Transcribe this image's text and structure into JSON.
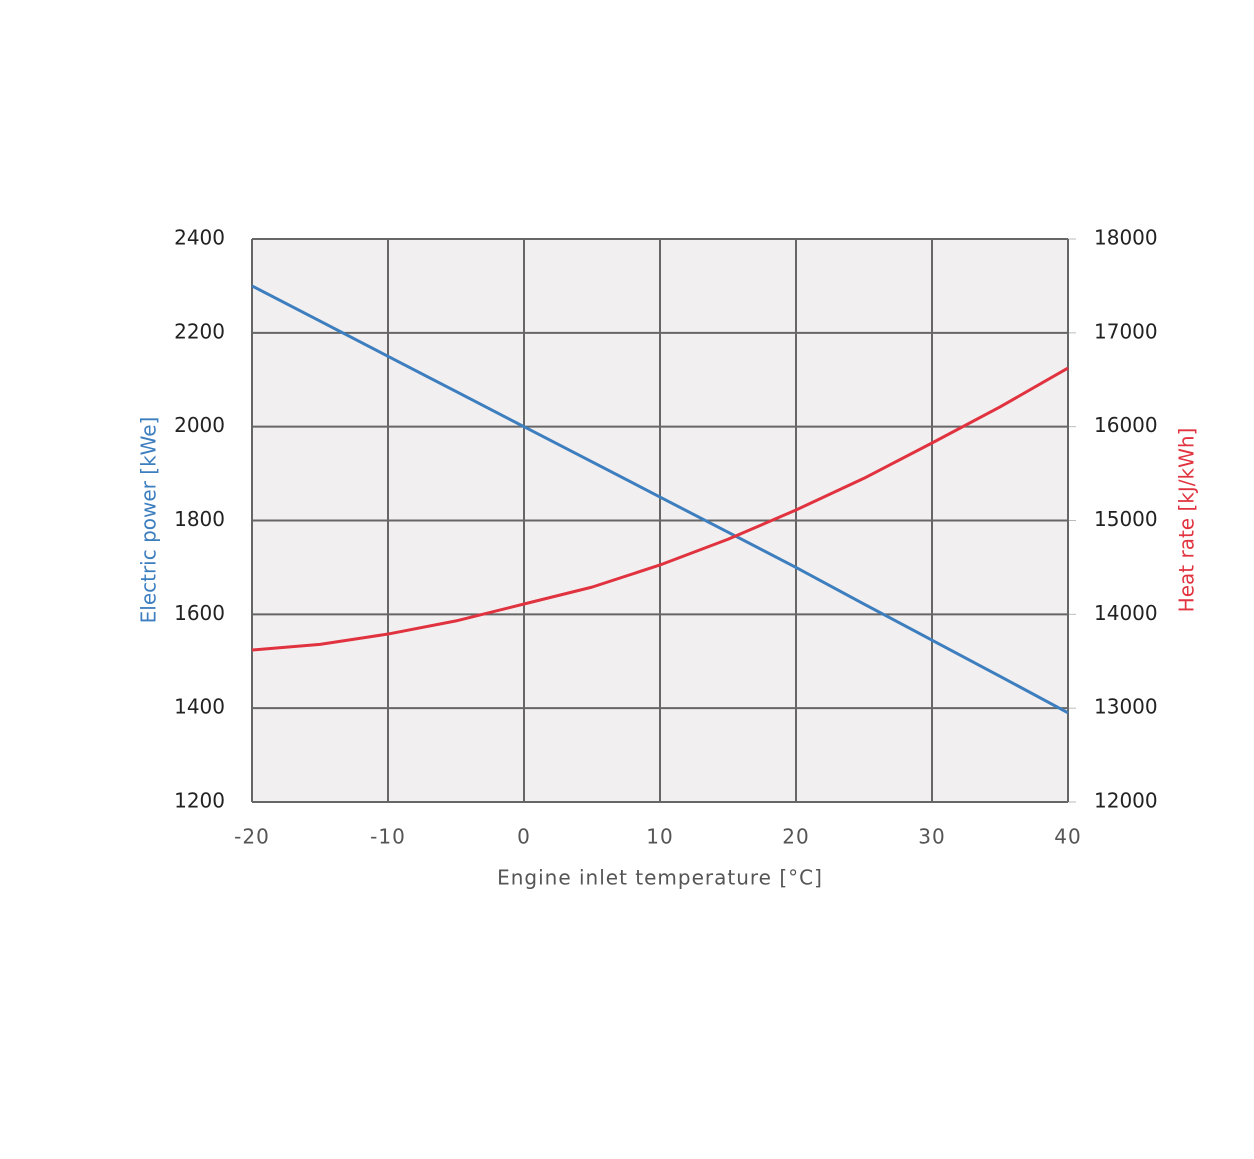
{
  "chart_data": {
    "type": "line",
    "x_label": "Engine inlet temperature [°C]",
    "y_label": "Electric power [kWe]",
    "y2_label": "Heat rate [kJ/kWh]",
    "x": [
      -20,
      -15,
      -10,
      -5,
      0,
      5,
      10,
      15,
      20,
      25,
      30,
      35,
      40
    ],
    "series": [
      {
        "name": "Electric power",
        "color": "#3d7ebf",
        "values": [
          2300,
          2225,
          2150,
          2075,
          2000,
          1925,
          1850,
          1775,
          1700,
          1622,
          1545,
          1468,
          1390
        ]
      },
      {
        "name": "Heat rate",
        "color": "#e0333f",
        "axis": "y2",
        "values": [
          13620,
          13680,
          13790,
          13930,
          14110,
          14290,
          14526,
          14800,
          15112,
          15450,
          15826,
          16210,
          16625
        ]
      }
    ],
    "xlim": [
      -20,
      40
    ],
    "xticks": [
      -20,
      -10,
      0,
      10,
      20,
      30,
      40
    ],
    "ylim": [
      1200,
      2400
    ],
    "yticks": [
      1200,
      1400,
      1600,
      1800,
      2000,
      2200,
      2400
    ],
    "y2lim": [
      12000,
      18000
    ],
    "y2ticks": [
      12000,
      13000,
      14000,
      15000,
      16000,
      17000,
      18000
    ],
    "grid": true
  }
}
